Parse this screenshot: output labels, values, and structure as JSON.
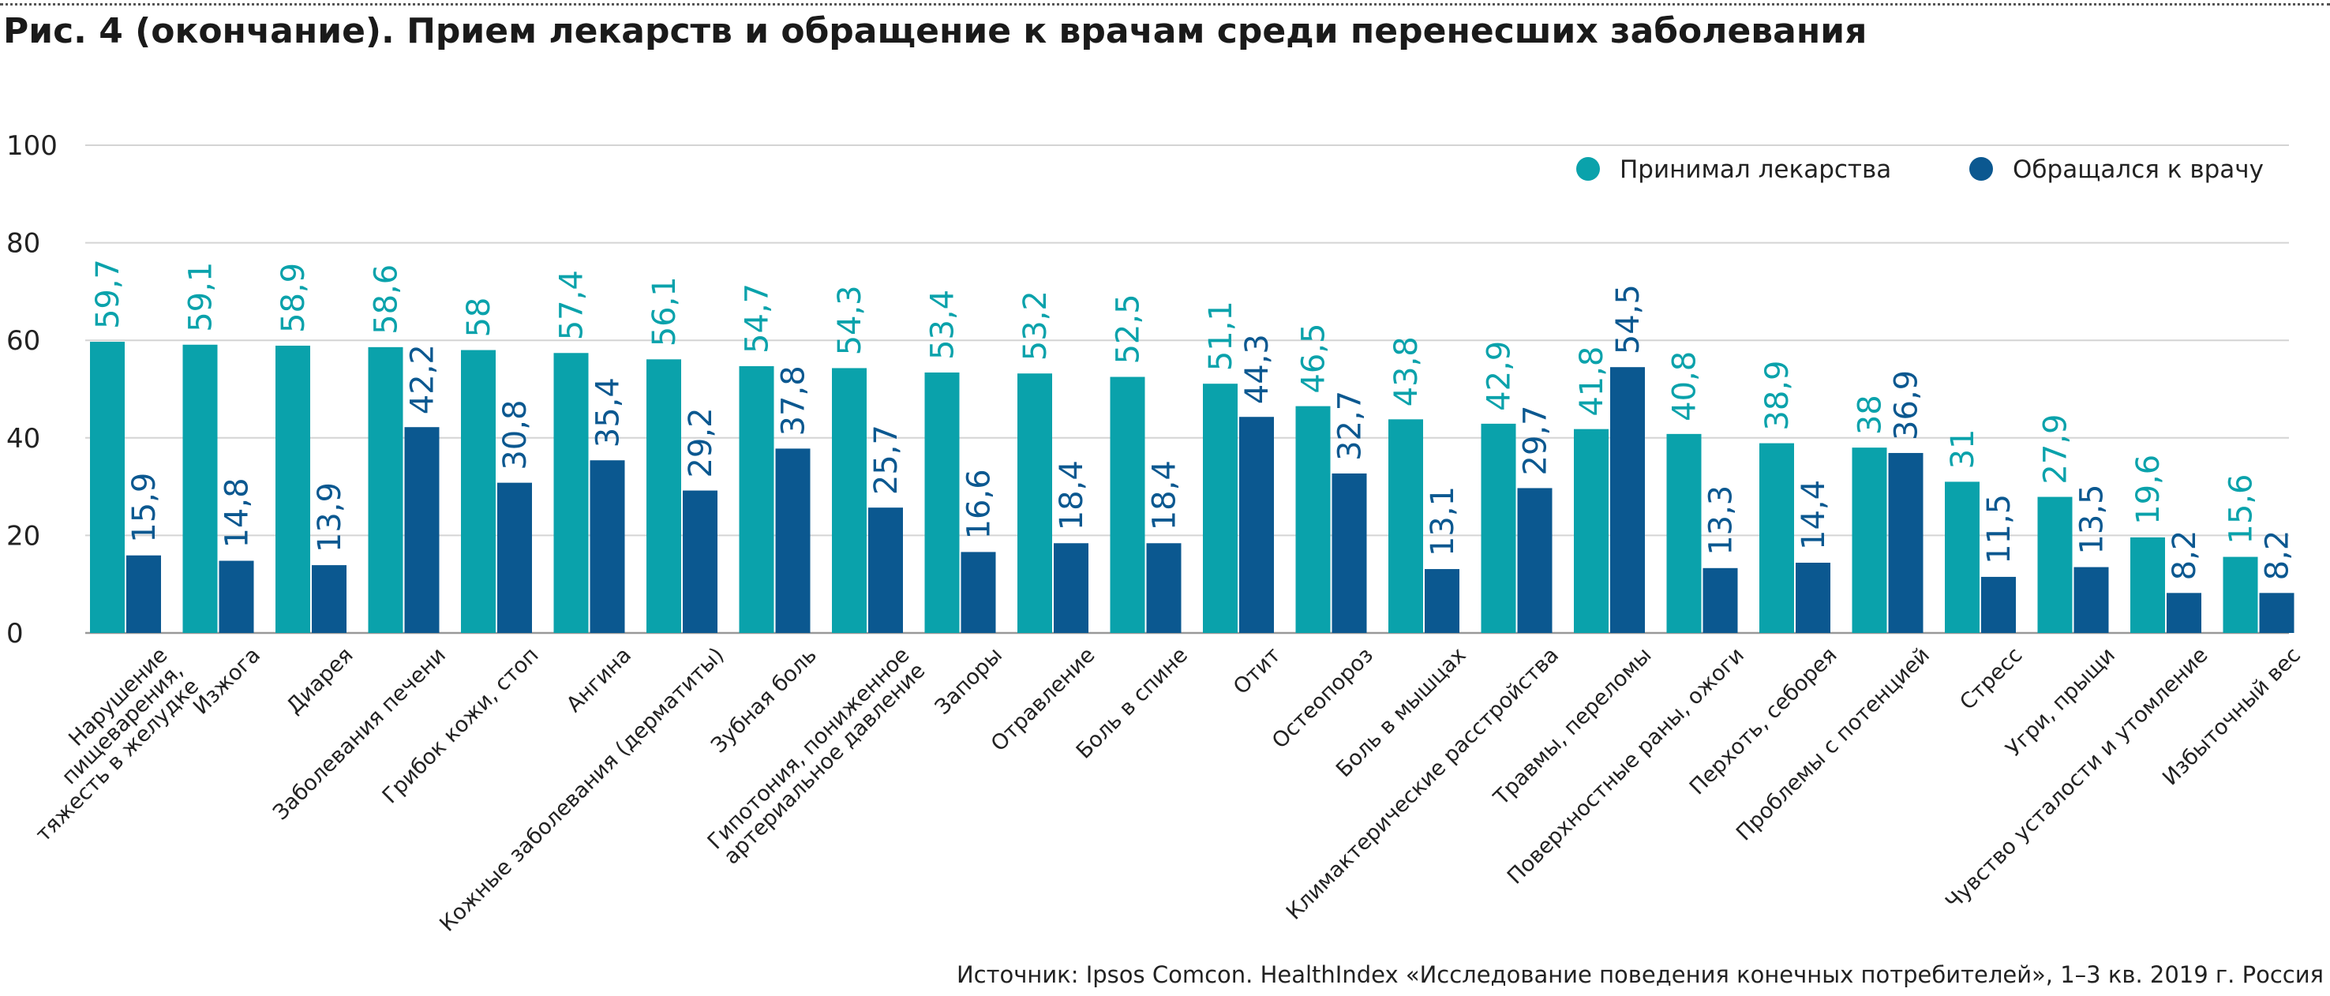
{
  "header": {
    "title": "Рис. 4 (окончание). Прием лекарств и обращение к врачам среди перенесших заболевания"
  },
  "source": "Источник: Ipsos Comcon. HealthIndex «Исследование поведения конечных потребителей», 1–3 кв. 2019 г. Россия",
  "colors": {
    "series1": "#0aa2ab",
    "series2": "#0b5890",
    "grid": "#d4d4d4",
    "axis": "#999999"
  },
  "chart_data": {
    "type": "bar",
    "title": "Рис. 4 (окончание). Прием лекарств и обращение к врачам среди перенесших заболевания",
    "xlabel": "",
    "ylabel": "",
    "ylim": [
      0,
      100
    ],
    "yticks": [
      "0",
      "20",
      "40",
      "60",
      "80",
      "100"
    ],
    "grid": true,
    "legend_position": "top-right",
    "categories": [
      [
        "Нарушение",
        "пищеварения,",
        "тяжесть в желудке"
      ],
      [
        "Изжога"
      ],
      [
        "Диарея"
      ],
      [
        "Заболевания печени"
      ],
      [
        "Грибок кожи, стоп"
      ],
      [
        "Ангина"
      ],
      [
        "Кожные заболевания (дерматиты)"
      ],
      [
        "Зубная боль"
      ],
      [
        "Гипотония, пониженное",
        "артериальное давление"
      ],
      [
        "Запоры"
      ],
      [
        "Отравление"
      ],
      [
        "Боль в спине"
      ],
      [
        "Отит"
      ],
      [
        "Остеопороз"
      ],
      [
        "Боль в мышцах"
      ],
      [
        "Климактерические расстройства"
      ],
      [
        "Травмы, переломы"
      ],
      [
        "Поверхностные раны, ожоги"
      ],
      [
        "Перхоть, себорея"
      ],
      [
        "Проблемы с потенцией"
      ],
      [
        "Стресс"
      ],
      [
        "Угри, прыщи"
      ],
      [
        "Чувство усталости и утомление"
      ],
      [
        "Избыточный вес"
      ]
    ],
    "series": [
      {
        "name": "Принимал лекарства",
        "color": "#0aa2ab",
        "values": [
          59.7,
          59.1,
          58.9,
          58.6,
          58,
          57.4,
          56.1,
          54.7,
          54.3,
          53.4,
          53.2,
          52.5,
          51.1,
          46.5,
          43.8,
          42.9,
          41.8,
          40.8,
          38.9,
          38,
          31,
          27.9,
          19.6,
          15.6
        ],
        "labels": [
          "59,7",
          "59,1",
          "58,9",
          "58,6",
          "58",
          "57,4",
          "56,1",
          "54,7",
          "54,3",
          "53,4",
          "53,2",
          "52,5",
          "51,1",
          "46,5",
          "43,8",
          "42,9",
          "41,8",
          "40,8",
          "38,9",
          "38",
          "31",
          "27,9",
          "19,6",
          "15,6"
        ]
      },
      {
        "name": "Обращался к врачу",
        "color": "#0b5890",
        "values": [
          15.9,
          14.8,
          13.9,
          42.2,
          30.8,
          35.4,
          29.2,
          37.8,
          25.7,
          16.6,
          18.4,
          18.4,
          44.3,
          32.7,
          13.1,
          29.7,
          54.5,
          13.3,
          14.4,
          36.9,
          11.5,
          13.5,
          8.2,
          8.2
        ],
        "labels": [
          "15,9",
          "14,8",
          "13,9",
          "42,2",
          "30,8",
          "35,4",
          "29,2",
          "37,8",
          "25,7",
          "16,6",
          "18,4",
          "18,4",
          "44,3",
          "32,7",
          "13,1",
          "29,7",
          "54,5",
          "13,3",
          "14,4",
          "36,9",
          "11,5",
          "13,5",
          "8,2",
          "8,2"
        ]
      }
    ]
  }
}
